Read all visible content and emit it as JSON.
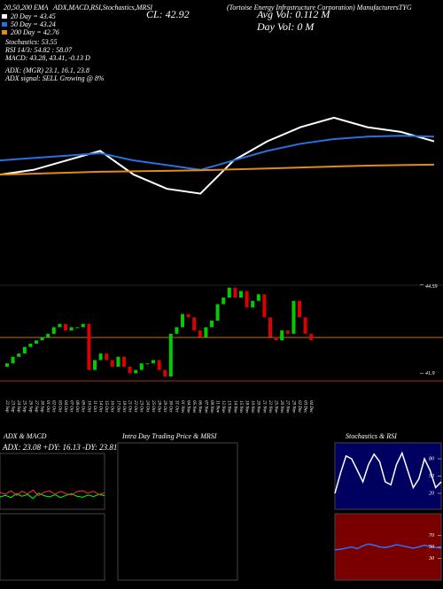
{
  "header": {
    "ema_title": "20,50,200 EMA",
    "indicators": "ADX,MACD,RSI,Stochastics,MRSI",
    "company": "(Tortoise Energy Infrastructure Corporation) ManufacturersTYG",
    "close": "CL: 42.92",
    "avg_vol": "Avg Vol: 0.112 M",
    "day_vol": "Day Vol: 0 M",
    "stats": [
      "Stochastics: 53.55",
      "RSI 14/3: 54.82 : 58.07",
      "MACD: 43.28, 43.41, -0.13 D"
    ],
    "adx": "ADX: (MGR) 23.1, 16.1, 23.8",
    "adx_signal": "ADX signal: SELL Growing @ 8%"
  },
  "chart_data": [
    {
      "type": "line",
      "series": [
        {
          "name": "20 Day = 43.45",
          "color": "#ffffff",
          "values": [
            42.6,
            42.7,
            42.9,
            43.1,
            42.6,
            42.3,
            42.2,
            42.9,
            43.3,
            43.6,
            43.8,
            43.6,
            43.5,
            43.3
          ]
        },
        {
          "name": "50 Day = 43.24",
          "color": "#2a6fe0",
          "values": [
            42.9,
            42.95,
            43.0,
            43.05,
            42.9,
            42.8,
            42.7,
            42.9,
            43.1,
            43.25,
            43.35,
            43.4,
            43.42,
            43.4
          ]
        },
        {
          "name": "200 Day = 42.76",
          "color": "#e08a1a",
          "values": [
            42.6,
            42.62,
            42.64,
            42.66,
            42.67,
            42.68,
            42.69,
            42.71,
            42.73,
            42.75,
            42.77,
            42.79,
            42.8,
            42.81
          ]
        }
      ],
      "ylim": [
        41.8,
        44.6
      ]
    },
    {
      "type": "candlestick",
      "categories": [
        "22 Sep",
        "23 Sep",
        "24 Sep",
        "25 Sep",
        "26 Sep",
        "27 Sep",
        "30 Sep",
        "01 Oct",
        "02 Oct",
        "03 Oct",
        "04 Oct",
        "07 Oct",
        "08 Oct",
        "09 Oct",
        "10 Oct",
        "11 Oct",
        "14 Oct",
        "15 Oct",
        "16 Oct",
        "17 Oct",
        "18 Oct",
        "21 Oct",
        "22 Oct",
        "23 Oct",
        "24 Oct",
        "25 Oct",
        "28 Oct",
        "29 Oct",
        "30 Oct",
        "31 Oct",
        "01 Nov",
        "04 Nov",
        "05 Nov",
        "06 Nov",
        "07 Nov",
        "08 Nov",
        "11 Nov",
        "12 Nov",
        "13 Nov",
        "14 Nov",
        "15 Nov",
        "18 Nov",
        "19 Nov",
        "20 Nov",
        "21 Nov",
        "22 Nov",
        "25 Nov",
        "26 Nov",
        "27 Nov",
        "29 Nov",
        "02 Dec",
        "03 Dec",
        "04 Dec"
      ],
      "open": [
        42.1,
        42.2,
        42.4,
        42.5,
        42.7,
        42.8,
        42.9,
        43.0,
        43.1,
        43.3,
        43.4,
        43.2,
        43.3,
        43.3,
        43.4,
        42.0,
        42.3,
        42.5,
        42.3,
        42.1,
        42.4,
        42.1,
        41.9,
        42.0,
        42.2,
        42.2,
        42.3,
        42.0,
        41.8,
        43.1,
        43.3,
        43.7,
        43.6,
        43.2,
        43.0,
        43.3,
        43.5,
        44.0,
        44.2,
        44.5,
        44.2,
        44.4,
        43.9,
        44.1,
        44.3,
        43.6,
        43.0,
        42.9,
        43.2,
        43.1,
        44.1,
        43.6,
        43.1
      ],
      "close": [
        42.2,
        42.4,
        42.5,
        42.7,
        42.8,
        42.9,
        43.0,
        43.1,
        43.3,
        43.4,
        43.2,
        43.3,
        43.3,
        43.4,
        42.0,
        42.3,
        42.5,
        42.3,
        42.1,
        42.4,
        42.1,
        41.9,
        42.0,
        42.2,
        42.2,
        42.3,
        42.0,
        41.8,
        43.1,
        43.3,
        43.7,
        43.6,
        43.2,
        43.0,
        43.3,
        43.5,
        44.0,
        44.2,
        44.5,
        44.2,
        44.4,
        43.9,
        44.1,
        44.3,
        43.6,
        43.0,
        42.9,
        43.2,
        43.1,
        44.1,
        43.6,
        43.1,
        42.9
      ],
      "ylim": [
        41.4,
        44.9
      ],
      "yticks": [
        41.9,
        44.59
      ]
    },
    {
      "type": "line",
      "title": "ADX & MACD",
      "subtitle": "ADX: 23.08 +DY: 16.13 -DY: 23.81",
      "series": [
        {
          "name": "+DY",
          "color": "#00ff00",
          "values": [
            40,
            45,
            38,
            50,
            42,
            48,
            35,
            52,
            44,
            40,
            47,
            38,
            45,
            50,
            42,
            39,
            46,
            41,
            48,
            44
          ]
        },
        {
          "name": "-DY",
          "color": "#ff3030",
          "values": [
            55,
            48,
            60,
            45,
            58,
            50,
            62,
            44,
            55,
            60,
            48,
            58,
            50,
            46,
            57,
            60,
            52,
            58,
            47,
            53
          ]
        }
      ],
      "ylim": [
        0,
        100
      ]
    },
    {
      "type": "panel",
      "title": "Intra Day Trading Price & MRSI"
    },
    {
      "type": "line",
      "title": "Stochastics & RSI",
      "series": [
        {
          "name": "Stochastics",
          "color": "#ffffff",
          "values": [
            20,
            55,
            85,
            80,
            60,
            40,
            70,
            88,
            75,
            40,
            35,
            70,
            90,
            60,
            30,
            45,
            80,
            60,
            30,
            40
          ]
        }
      ],
      "ylim": [
        0,
        100
      ],
      "yticks": [
        20,
        50,
        80
      ]
    },
    {
      "type": "line",
      "series": [
        {
          "name": "RSI",
          "color": "#3070ff",
          "values": [
            45,
            46,
            48,
            50,
            47,
            52,
            55,
            53,
            50,
            49,
            51,
            54,
            52,
            50,
            48,
            50,
            53,
            51,
            49,
            48
          ]
        }
      ],
      "ylim": [
        0,
        100
      ],
      "yticks": [
        30,
        50,
        70
      ]
    }
  ]
}
